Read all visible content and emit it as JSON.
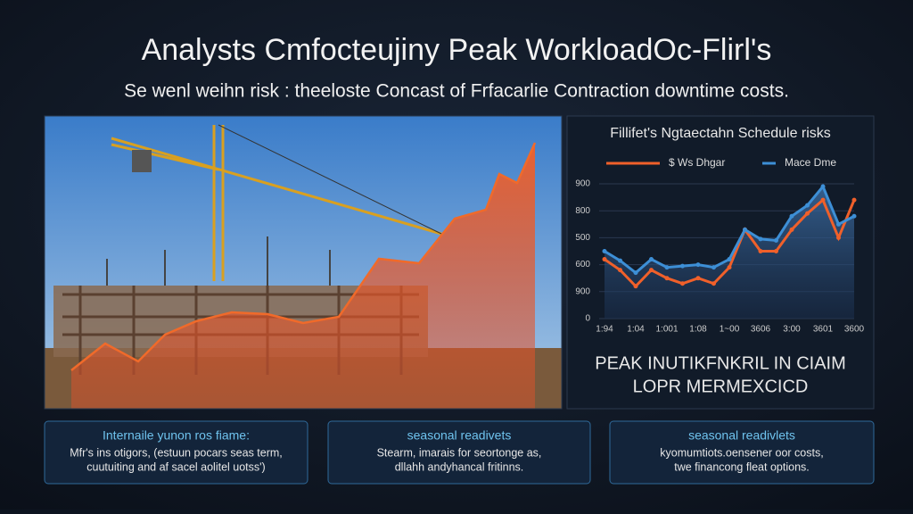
{
  "header": {
    "title": "Analysts Cmfocteujiny Peak WorkloadOc-Flirl's",
    "subtitle": "Se wenl weihn risk : theeloste Concast of Frfacarlie Contraction downtime costs."
  },
  "chart_data": {
    "type": "line",
    "title": "Fillifet's Ngtaectahn Schedule risks",
    "categories": [
      "1:94",
      null,
      "1:04",
      null,
      "1:001",
      null,
      "1:08",
      null,
      "1~00",
      null,
      "3606",
      null,
      "3:00",
      null,
      "3601",
      null,
      "3600"
    ],
    "series": [
      {
        "name": "$ Ws Dhgar",
        "color": "#f0602a",
        "values": [
          2.2,
          1.8,
          1.2,
          1.8,
          1.5,
          1.3,
          1.5,
          1.3,
          1.9,
          3.3,
          2.5,
          2.5,
          3.3,
          3.9,
          4.4,
          3.0,
          4.4
        ]
      },
      {
        "name": "Mace Dme",
        "color": "#3d8fd6",
        "values": [
          2.5,
          2.15,
          1.7,
          2.2,
          1.9,
          1.95,
          2.0,
          1.9,
          2.2,
          3.3,
          2.95,
          2.9,
          3.8,
          4.2,
          4.9,
          3.5,
          3.8
        ]
      }
    ],
    "ylim": [
      0,
      5
    ],
    "yticks": [
      {
        "value": 0,
        "label": "0"
      },
      {
        "value": 1,
        "label": "900"
      },
      {
        "value": 2,
        "label": "600"
      },
      {
        "value": 3,
        "label": "500"
      },
      {
        "value": 4,
        "label": "800"
      },
      {
        "value": 5,
        "label": "900"
      }
    ],
    "grid": true
  },
  "caption": [
    "PEAK INUTIKFNKRIL IN CIAIM",
    "LOPR MERMEXCICD"
  ],
  "cards": [
    {
      "title": "Internaile yunon ros fiame:",
      "lines": [
        "Mfr's ins otigors, (estuun pocars seas term,",
        "cuutuiting and af sacel aolitel uotss')"
      ]
    },
    {
      "title": "seasonal readivets",
      "lines": [
        "Stearm, imarais for seortonge as,",
        "dllahh andyhancal fritinns."
      ]
    },
    {
      "title": "seasonal readivlets",
      "lines": [
        "kyomumtiots.oensener oor costs,",
        "twe financong fleat options."
      ]
    }
  ]
}
